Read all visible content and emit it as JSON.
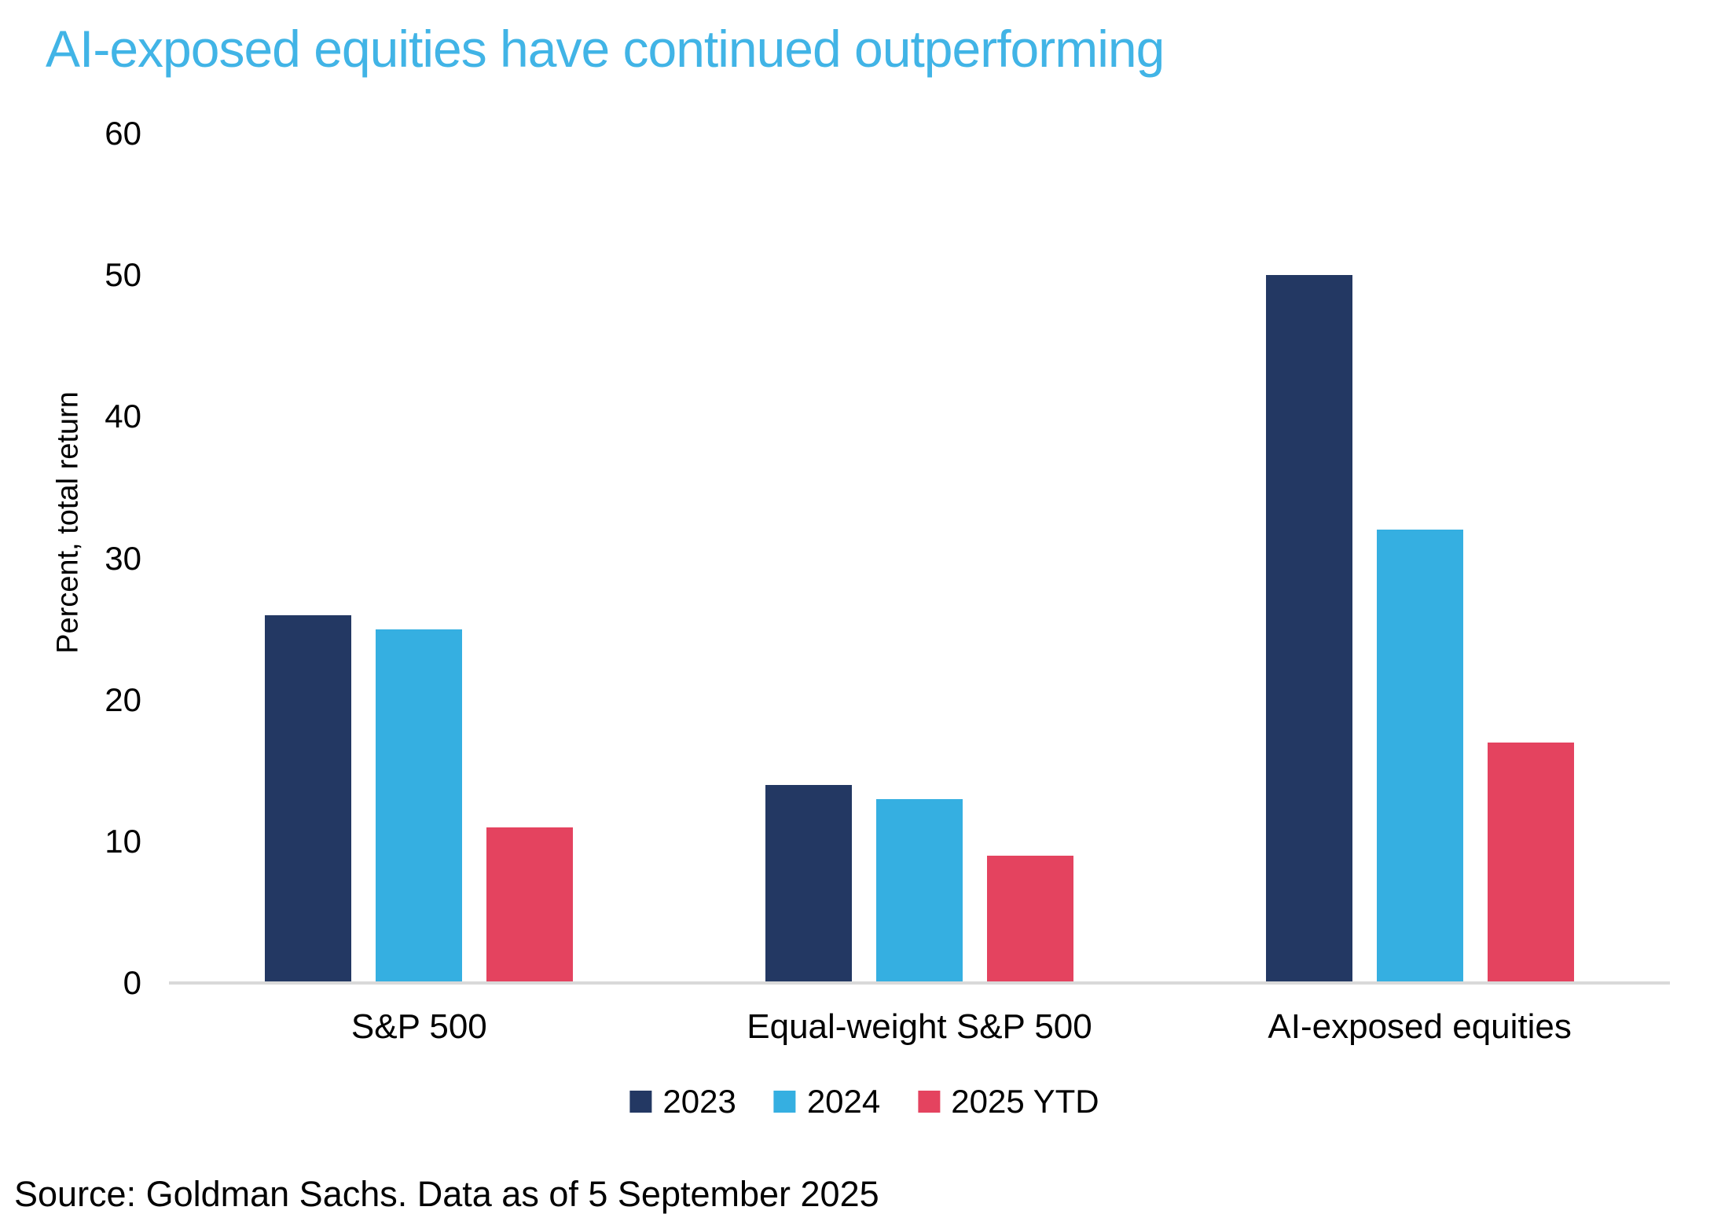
{
  "chart_data": {
    "type": "bar",
    "title": "AI-exposed equities have continued outperforming",
    "title_color": "#41b4e6",
    "ylabel": "Percent, total return",
    "xlabel": "",
    "ylim": [
      0,
      60
    ],
    "yticks": [
      0,
      10,
      20,
      30,
      40,
      50,
      60
    ],
    "grid": false,
    "legend_position": "bottom",
    "axis_line_color": "#d9d9d9",
    "text_color": "#000000",
    "categories": [
      "S&P 500",
      "Equal-weight S&P 500",
      "AI-exposed equities"
    ],
    "series": [
      {
        "name": "2023",
        "color": "#233863",
        "values": [
          26,
          14,
          50
        ]
      },
      {
        "name": "2024",
        "color": "#35afe1",
        "values": [
          25,
          13,
          32
        ]
      },
      {
        "name": "2025 YTD",
        "color": "#e4435f",
        "values": [
          11,
          9,
          17
        ]
      }
    ]
  },
  "source": {
    "text": "Source: Goldman Sachs. Data as of 5 September 2025"
  }
}
